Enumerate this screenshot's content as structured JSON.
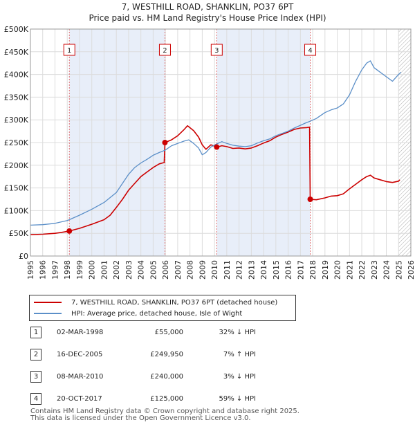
{
  "title_line1": "7, WESTHILL ROAD, SHANKLIN, PO37 6PT",
  "title_line2": "Price paid vs. HM Land Registry's House Price Index (HPI)",
  "colors": {
    "property": "#cc0000",
    "hpi": "#5b8fc8",
    "shade": "#e8eef9",
    "sale_line": "#e07070"
  },
  "legend": {
    "property_label": "7, WESTHILL ROAD, SHANKLIN, PO37 6PT (detached house)",
    "hpi_label": "HPI: Average price, detached house, Isle of Wight"
  },
  "sales": [
    {
      "num": "1",
      "date": "02-MAR-1998",
      "price": "£55,000",
      "hpi_rel": "32% ↓ HPI"
    },
    {
      "num": "2",
      "date": "16-DEC-2005",
      "price": "£249,950",
      "hpi_rel": "7% ↑ HPI"
    },
    {
      "num": "3",
      "date": "08-MAR-2010",
      "price": "£240,000",
      "hpi_rel": "3% ↓ HPI"
    },
    {
      "num": "4",
      "date": "20-OCT-2017",
      "price": "£125,000",
      "hpi_rel": "59% ↓ HPI"
    }
  ],
  "footer_line1": "Contains HM Land Registry data © Crown copyright and database right 2025.",
  "footer_line2": "This data is licensed under the Open Government Licence v3.0.",
  "chart_data": {
    "type": "line",
    "title": "7, WESTHILL ROAD, SHANKLIN, PO37 6PT",
    "subtitle": "Price paid vs. HM Land Registry's House Price Index (HPI)",
    "xlim": [
      1995,
      2026
    ],
    "ylim": [
      0,
      500000
    ],
    "grid": true,
    "y_ticks": [
      0,
      50000,
      100000,
      150000,
      200000,
      250000,
      300000,
      350000,
      400000,
      450000,
      500000
    ],
    "y_tick_labels": [
      "£0",
      "£50K",
      "£100K",
      "£150K",
      "£200K",
      "£250K",
      "£300K",
      "£350K",
      "£400K",
      "£450K",
      "£500K"
    ],
    "x_ticks": [
      1995,
      1996,
      1997,
      1998,
      1999,
      2000,
      2001,
      2002,
      2003,
      2004,
      2005,
      2006,
      2007,
      2008,
      2009,
      2010,
      2011,
      2012,
      2013,
      2014,
      2015,
      2016,
      2017,
      2018,
      2019,
      2020,
      2021,
      2022,
      2023,
      2024,
      2025,
      2026
    ],
    "sale_markers": [
      {
        "label": "1",
        "x": 1998.17,
        "y": 55000
      },
      {
        "label": "2",
        "x": 2005.96,
        "y": 249950
      },
      {
        "label": "3",
        "x": 2010.18,
        "y": 240000
      },
      {
        "label": "4",
        "x": 2017.8,
        "y": 125000
      }
    ],
    "shaded_ranges": [
      [
        1998.17,
        2005.96
      ],
      [
        2010.18,
        2017.8
      ]
    ],
    "hatched_range": [
      2025.0,
      2026.0
    ],
    "series": [
      {
        "name": "7, WESTHILL ROAD, SHANKLIN, PO37 6PT (detached house)",
        "x": [
          1995,
          1996,
          1997,
          1997.5,
          1998.1,
          1998.17,
          1999,
          2000,
          2001,
          2001.5,
          2002,
          2002.5,
          2003,
          2003.5,
          2004,
          2004.5,
          2005,
          2005.5,
          2005.9,
          2005.96,
          2006.5,
          2007,
          2007.5,
          2007.8,
          2008.3,
          2008.7,
          2009,
          2009.3,
          2009.7,
          2010.0,
          2010.18,
          2010.6,
          2011,
          2011.5,
          2012,
          2012.5,
          2013,
          2013.5,
          2014,
          2014.5,
          2015,
          2015.5,
          2016,
          2016.5,
          2017,
          2017.5,
          2017.75,
          2017.8,
          2018.3,
          2019,
          2019.5,
          2020,
          2020.5,
          2021,
          2021.5,
          2022,
          2022.4,
          2022.7,
          2023,
          2023.5,
          2024,
          2024.5,
          2025,
          2025.1
        ],
        "y": [
          47000,
          48000,
          50000,
          52000,
          54500,
          55000,
          61000,
          70000,
          80000,
          90000,
          107000,
          125000,
          145000,
          160000,
          175000,
          185000,
          195000,
          203000,
          206000,
          249950,
          256000,
          265000,
          278000,
          287000,
          276000,
          262000,
          245000,
          235000,
          245000,
          242000,
          240000,
          243000,
          241000,
          237000,
          238000,
          236000,
          238000,
          243000,
          249000,
          254000,
          262000,
          268000,
          273000,
          279000,
          282000,
          283000,
          284000,
          125000,
          124000,
          128000,
          132000,
          133000,
          137000,
          148000,
          158000,
          168000,
          175000,
          178000,
          172000,
          168000,
          164000,
          162000,
          165000,
          168000
        ]
      },
      {
        "name": "HPI: Average price, detached house, Isle of Wight",
        "x": [
          1995,
          1996,
          1997,
          1998,
          1998.17,
          1999,
          2000,
          2001,
          2002,
          2002.5,
          2003,
          2003.5,
          2004,
          2004.5,
          2005,
          2005.5,
          2005.96,
          2006.5,
          2007,
          2007.5,
          2007.9,
          2008.3,
          2008.7,
          2009,
          2009.3,
          2009.7,
          2010.18,
          2010.6,
          2011,
          2011.5,
          2012,
          2012.5,
          2013,
          2013.5,
          2014,
          2014.5,
          2015,
          2015.5,
          2016,
          2016.5,
          2017,
          2017.5,
          2017.8,
          2018.3,
          2019,
          2019.5,
          2020,
          2020.5,
          2021,
          2021.5,
          2022,
          2022.4,
          2022.7,
          2023,
          2023.5,
          2024,
          2024.5,
          2025,
          2025.2
        ],
        "y": [
          68000,
          69000,
          72000,
          78000,
          80000,
          90000,
          103000,
          118000,
          140000,
          160000,
          180000,
          195000,
          205000,
          213000,
          222000,
          228000,
          233000,
          243000,
          248000,
          253000,
          256000,
          248000,
          238000,
          223000,
          228000,
          240000,
          247000,
          252000,
          248000,
          244000,
          242000,
          241000,
          243000,
          249000,
          254000,
          258000,
          265000,
          270000,
          275000,
          282000,
          288000,
          294000,
          297000,
          303000,
          316000,
          322000,
          326000,
          335000,
          355000,
          385000,
          410000,
          425000,
          430000,
          415000,
          405000,
          395000,
          385000,
          400000,
          405000
        ]
      }
    ]
  }
}
